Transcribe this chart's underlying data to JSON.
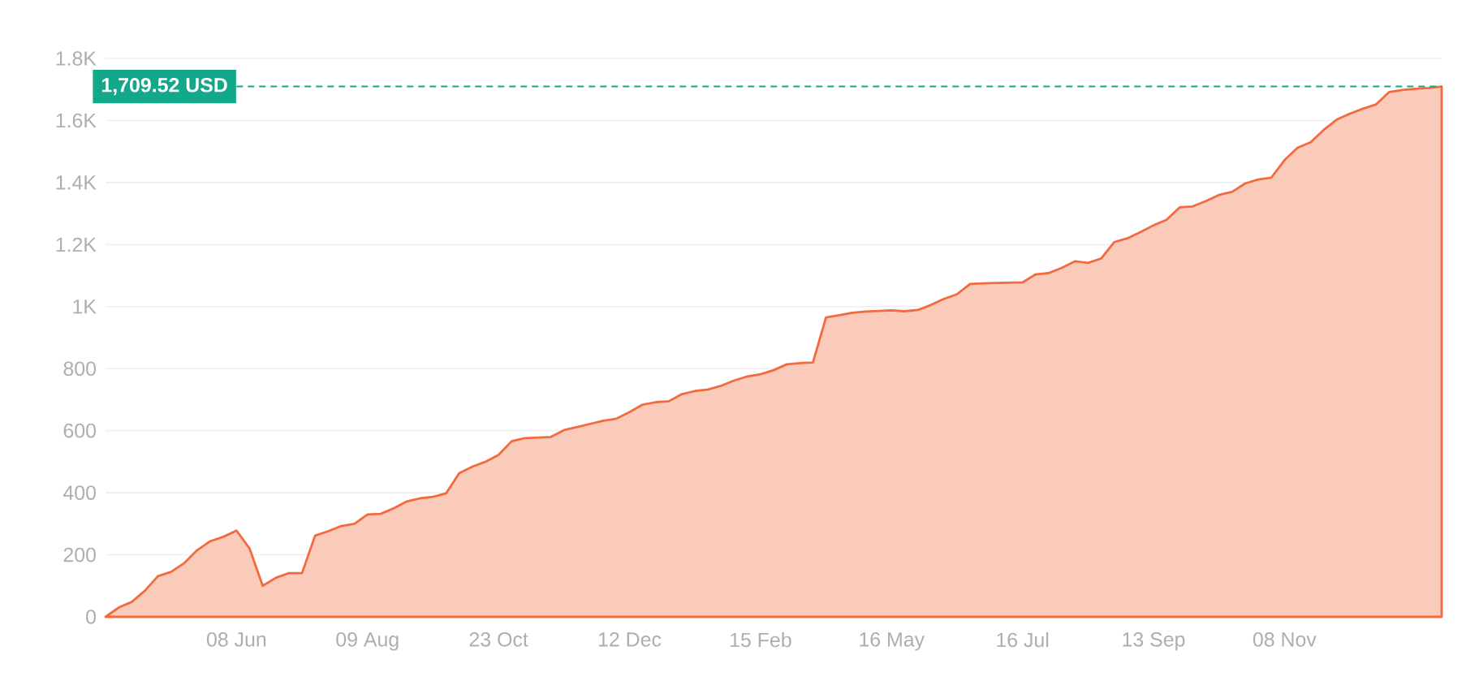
{
  "chart_data": {
    "type": "area",
    "categories": [
      null,
      null,
      null,
      null,
      null,
      null,
      null,
      null,
      null,
      null,
      "08 Jun",
      null,
      null,
      null,
      null,
      null,
      null,
      null,
      null,
      null,
      "09 Aug",
      null,
      null,
      null,
      null,
      null,
      null,
      null,
      null,
      null,
      "23 Oct",
      null,
      null,
      null,
      null,
      null,
      null,
      null,
      null,
      null,
      "12 Dec",
      null,
      null,
      null,
      null,
      null,
      null,
      null,
      null,
      null,
      "15 Feb",
      null,
      null,
      null,
      null,
      null,
      null,
      null,
      null,
      null,
      "16 May",
      null,
      null,
      null,
      null,
      null,
      null,
      null,
      null,
      null,
      "16 Jul",
      null,
      null,
      null,
      null,
      null,
      null,
      null,
      null,
      null,
      "13 Sep",
      null,
      null,
      null,
      null,
      null,
      null,
      null,
      null,
      null,
      "08 Nov",
      null,
      null,
      null,
      null,
      null,
      null,
      null,
      null,
      null,
      null,
      null,
      null
    ],
    "series": [
      {
        "color": "#f26a3d",
        "values": [
          0,
          30,
          48,
          84,
          131,
          145,
          173,
          215,
          244,
          258,
          278,
          220,
          100,
          126,
          141,
          141,
          262,
          276,
          293,
          300,
          330,
          332,
          350,
          372,
          382,
          387,
          398,
          463,
          484,
          500,
          522,
          566,
          576,
          578,
          580,
          602,
          612,
          622,
          632,
          639,
          660,
          684,
          692,
          695,
          718,
          728,
          733,
          745,
          762,
          775,
          782,
          795,
          814,
          818,
          820,
          965,
          972,
          980,
          984,
          986,
          988,
          985,
          989,
          1005,
          1025,
          1040,
          1073,
          1075,
          1076,
          1077,
          1078,
          1104,
          1108,
          1125,
          1146,
          1141,
          1155,
          1208,
          1220,
          1240,
          1262,
          1280,
          1320,
          1323,
          1340,
          1360,
          1370,
          1397,
          1410,
          1416,
          1472,
          1512,
          1530,
          1570,
          1603,
          1622,
          1638,
          1652,
          1692,
          1698,
          1702,
          1705,
          1709.52
        ]
      }
    ],
    "ylim": [
      0,
      1800
    ],
    "yticks": [
      0,
      200,
      400,
      600,
      800,
      {
        "value": 1000,
        "label": "1K"
      },
      {
        "value": 1200,
        "label": "1.2K"
      },
      {
        "value": 1400,
        "label": "1.4K"
      },
      {
        "value": 1600,
        "label": "1.6K"
      },
      {
        "value": 1800,
        "label": "1.8K"
      }
    ],
    "grid": "y",
    "ref_lines": [
      {
        "axis": "y",
        "value": 1709.52,
        "label": "1,709.52 USD",
        "color": "#13a88a",
        "line_style": "dashed"
      }
    ]
  }
}
